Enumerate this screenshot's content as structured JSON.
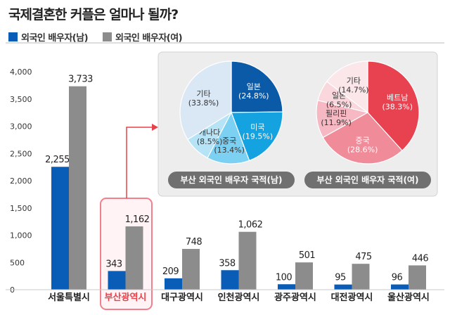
{
  "title": "국제결혼한 커플은 얼마나 될까?",
  "legend": [
    {
      "label": "외국인 배우자(남)",
      "color": "#0a5db6"
    },
    {
      "label": "외국인 배우자(여)",
      "color": "#8c8c8c"
    }
  ],
  "chart_data": [
    {
      "type": "bar",
      "categories": [
        "서울특별시",
        "부산광역시",
        "대구광역시",
        "인천광역시",
        "광주광역시",
        "대전광역시",
        "울산광역시"
      ],
      "highlight_category": "부산광역시",
      "series": [
        {
          "name": "외국인 배우자(남)",
          "color": "#0a5db6",
          "values": [
            2255,
            343,
            209,
            358,
            100,
            95,
            96
          ]
        },
        {
          "name": "외국인 배우자(여)",
          "color": "#8c8c8c",
          "values": [
            3733,
            1162,
            748,
            1062,
            501,
            475,
            446
          ]
        }
      ],
      "yticks": [
        "4,000",
        "3,500",
        "3,000",
        "2,500",
        "2,000",
        "1,500",
        "1,000",
        "500",
        "0"
      ],
      "ylim": [
        0,
        4000
      ],
      "grid": false
    },
    {
      "type": "pie",
      "title": "부산 외국인 배우자 국적(남)",
      "slices": [
        {
          "name": "일본",
          "value": 24.8,
          "label": "(24.8%)",
          "color": "#0b5aa8"
        },
        {
          "name": "미국",
          "value": 19.5,
          "label": "(19.5%)",
          "color": "#14a3e0"
        },
        {
          "name": "중국",
          "value": 13.4,
          "label": "(13.4%)",
          "color": "#7cd0f2"
        },
        {
          "name": "캐나다",
          "value": 8.5,
          "label": "(8.5%)",
          "color": "#b7e3f6"
        },
        {
          "name": "기타",
          "value": 33.8,
          "label": "(33.8%)",
          "color": "#dae8f5"
        }
      ]
    },
    {
      "type": "pie",
      "title": "부산 외국인 배우자 국적(여)",
      "slices": [
        {
          "name": "베트남",
          "value": 38.3,
          "label": "(38.3%)",
          "color": "#e8414f"
        },
        {
          "name": "중국",
          "value": 28.6,
          "label": "(28.6%)",
          "color": "#f08c9a"
        },
        {
          "name": "필리핀",
          "value": 11.9,
          "label": "(11.9%)",
          "color": "#f6b9c3"
        },
        {
          "name": "일본",
          "value": 6.5,
          "label": "(6.5%)",
          "color": "#fad7dd"
        },
        {
          "name": "기타",
          "value": 14.7,
          "label": "(14.7%)",
          "color": "#fbe6ea"
        }
      ]
    }
  ]
}
